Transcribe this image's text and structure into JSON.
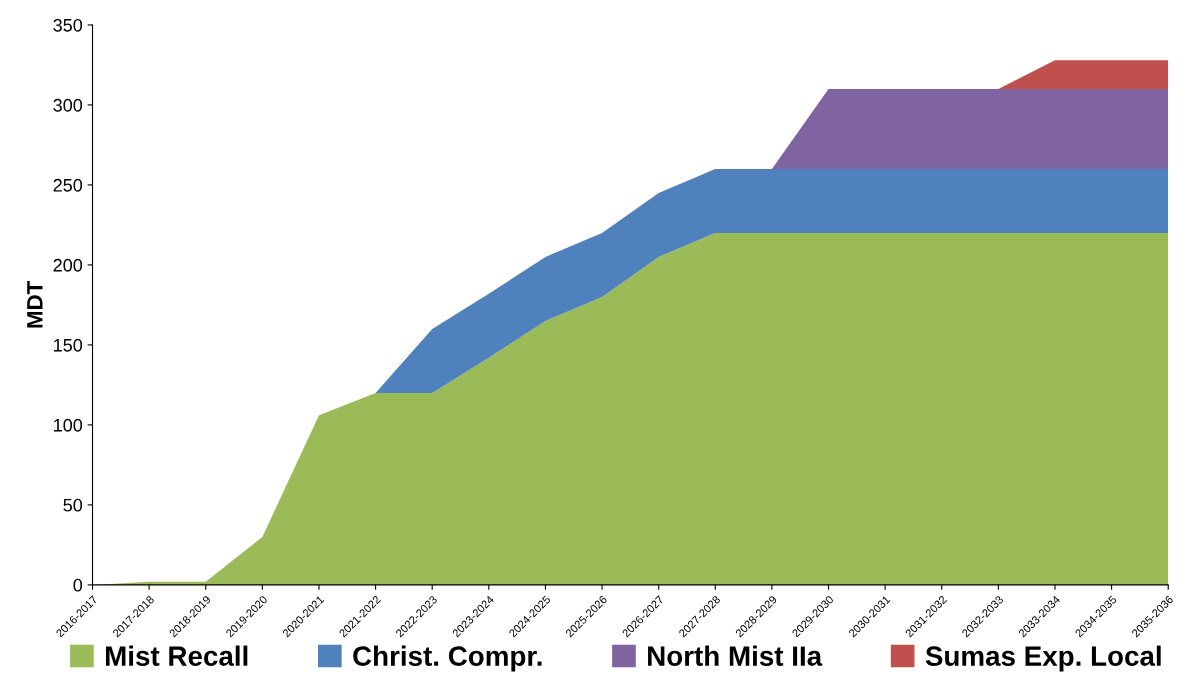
{
  "chart_data": {
    "type": "area",
    "stacked": true,
    "ylabel": "MDT",
    "categories": [
      "2016-2017",
      "2017-2018",
      "2018-2019",
      "2019-2020",
      "2020-2021",
      "2021-2022",
      "2022-2023",
      "2023-2024",
      "2024-2025",
      "2025-2026",
      "2026-2027",
      "2027-2028",
      "2028-2029",
      "2029-2030",
      "2030-2031",
      "2031-2032",
      "2032-2033",
      "2033-2034",
      "2034-2035",
      "2035-2036"
    ],
    "series": [
      {
        "name": "Mist Recall",
        "color": "#9bbb59",
        "values": [
          0,
          2,
          2,
          30,
          106,
          120,
          120,
          142,
          165,
          180,
          205,
          220,
          220,
          220,
          220,
          220,
          220,
          220,
          220,
          220
        ]
      },
      {
        "name": "Christ. Compr.",
        "color": "#4f81bd",
        "values": [
          0,
          0,
          0,
          0,
          0,
          0,
          40,
          40,
          40,
          40,
          40,
          40,
          40,
          40,
          40,
          40,
          40,
          40,
          40,
          40
        ]
      },
      {
        "name": "North Mist IIa",
        "color": "#8064a2",
        "values": [
          0,
          0,
          0,
          0,
          0,
          0,
          0,
          0,
          0,
          0,
          0,
          0,
          0,
          50,
          50,
          50,
          50,
          50,
          50,
          50
        ]
      },
      {
        "name": "Sumas Exp. Local",
        "color": "#c0504d",
        "values": [
          0,
          0,
          0,
          0,
          0,
          0,
          0,
          0,
          0,
          0,
          0,
          0,
          0,
          0,
          0,
          0,
          0,
          18,
          18,
          18
        ]
      }
    ],
    "ylim": [
      0,
      350
    ],
    "yticks": [
      0,
      50,
      100,
      150,
      200,
      250,
      300,
      350
    ],
    "grid": false,
    "legend": "bottom"
  }
}
